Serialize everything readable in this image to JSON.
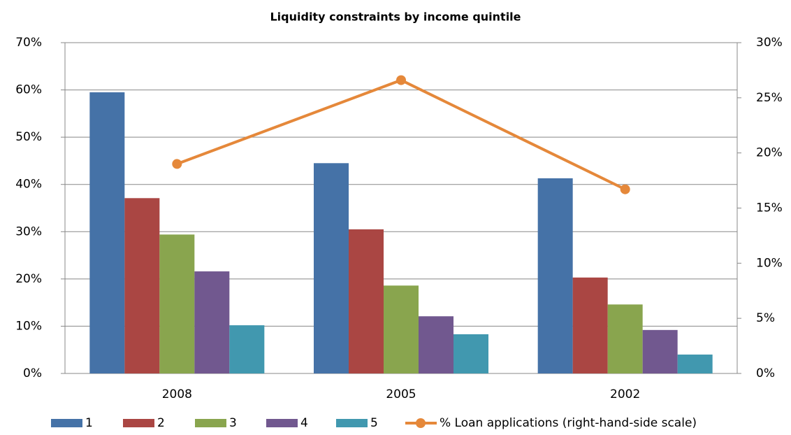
{
  "chart_data": {
    "type": "bar",
    "title": "Liquidity constraints by income quintile",
    "categories": [
      "2008",
      "2005",
      "2002"
    ],
    "series": [
      {
        "name": "1",
        "color": "#4572a7",
        "values": [
          59.5,
          44.5,
          41.3
        ]
      },
      {
        "name": "2",
        "color": "#aa4643",
        "values": [
          37.1,
          30.5,
          20.3
        ]
      },
      {
        "name": "3",
        "color": "#89a54e",
        "values": [
          29.4,
          18.6,
          14.6
        ]
      },
      {
        "name": "4",
        "color": "#71588f",
        "values": [
          21.6,
          12.1,
          9.2
        ]
      },
      {
        "name": "5",
        "color": "#4198af",
        "values": [
          10.2,
          8.3,
          4.0
        ]
      },
      {
        "name": "% Loan applications (right-hand-side scale)",
        "color": "#e5883a",
        "type": "line",
        "axis": "y2",
        "values": [
          19.0,
          26.6,
          16.7
        ]
      }
    ],
    "ylim": [
      0,
      70
    ],
    "yticks": [
      {
        "value": 0,
        "label": "0%"
      },
      {
        "value": 10,
        "label": "10%"
      },
      {
        "value": 20,
        "label": "20%"
      },
      {
        "value": 30,
        "label": "30%"
      },
      {
        "value": 40,
        "label": "40%"
      },
      {
        "value": 50,
        "label": "50%"
      },
      {
        "value": 60,
        "label": "60%"
      },
      {
        "value": 70,
        "label": "70%"
      }
    ],
    "y2lim": [
      0,
      30
    ],
    "y2ticks": [
      {
        "value": 0,
        "label": "0%"
      },
      {
        "value": 5,
        "label": "5%"
      },
      {
        "value": 10,
        "label": "10%"
      },
      {
        "value": 15,
        "label": "15%"
      },
      {
        "value": 20,
        "label": "20%"
      },
      {
        "value": 25,
        "label": "25%"
      },
      {
        "value": 30,
        "label": "30%"
      }
    ],
    "grid": true,
    "legend": "bottom"
  }
}
